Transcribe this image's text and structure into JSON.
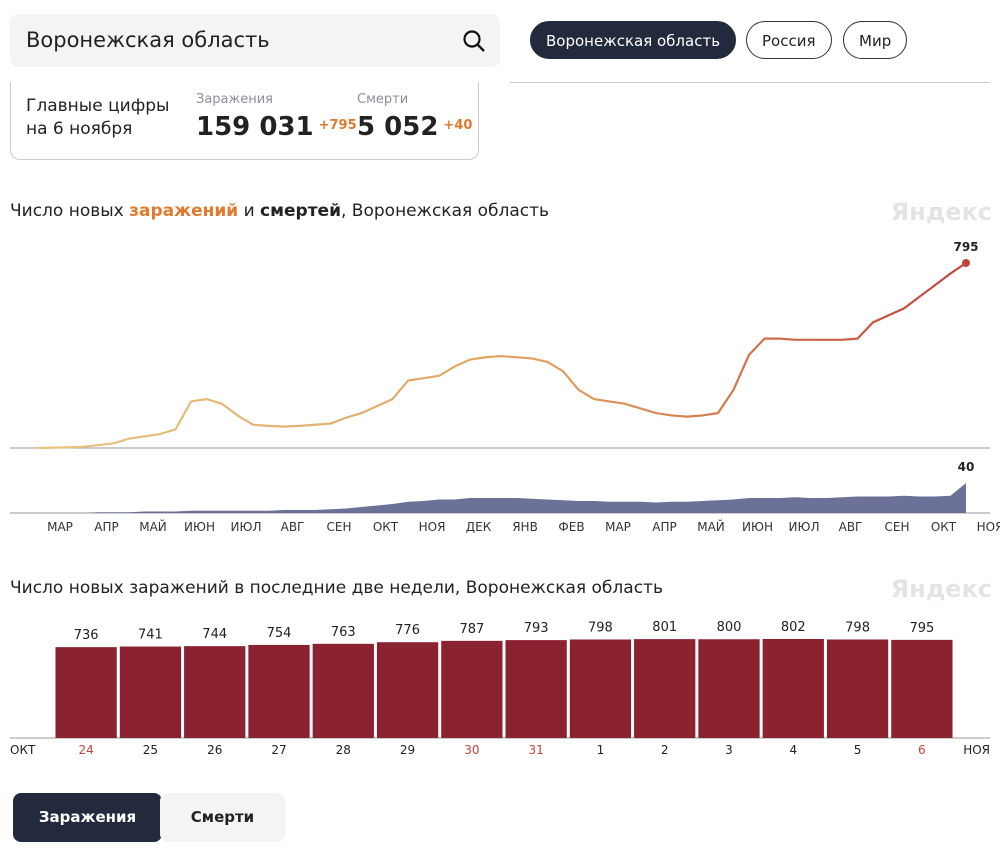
{
  "header": {
    "search": "Воронежская область",
    "regions": [
      "Воронежская область",
      "Россия",
      "Мир"
    ]
  },
  "stats": {
    "title_lines": [
      "Главные цифры",
      "на 6 ноября"
    ],
    "cases_label": "Заражения",
    "cases": "159 031",
    "cases_delta": "+795",
    "deaths_label": "Смерти",
    "deaths": "5 052",
    "deaths_delta": "+40"
  },
  "watermark": "Яндекс",
  "tabs": [
    "Заражения",
    "Смерти"
  ],
  "chart_data": [
    {
      "type": "line",
      "title_parts": [
        "Число новых ",
        "заражений",
        " и ",
        "смертей",
        ", Воронежская область"
      ],
      "categories": [
        "МАР",
        null,
        null,
        "АПР",
        null,
        null,
        "МАЙ",
        null,
        null,
        "ИЮН",
        null,
        null,
        "ИЮЛ",
        null,
        null,
        "АВГ",
        null,
        null,
        "СЕН",
        null,
        null,
        "ОКТ",
        null,
        null,
        "НОЯ",
        null,
        null,
        "ДЕК",
        null,
        null,
        "ЯНВ",
        null,
        null,
        "ФЕВ",
        null,
        null,
        "МАР",
        null,
        null,
        "АПР",
        null,
        null,
        "МАЙ",
        null,
        null,
        "ИЮН",
        null,
        null,
        "ИЮЛ",
        null,
        null,
        "АВГ",
        null,
        null,
        "СЕН",
        null,
        null,
        "ОКТ",
        null,
        null,
        "НОЯ"
      ],
      "series": [
        {
          "name": "заражений",
          "color": "#c0443a",
          "values": [
            0,
            1,
            3,
            5,
            12,
            20,
            40,
            50,
            60,
            80,
            200,
            210,
            190,
            140,
            100,
            95,
            92,
            95,
            100,
            105,
            130,
            150,
            180,
            210,
            290,
            300,
            310,
            350,
            380,
            390,
            395,
            390,
            385,
            370,
            330,
            250,
            210,
            200,
            190,
            170,
            150,
            140,
            135,
            140,
            150,
            250,
            400,
            470,
            470,
            465,
            465,
            465,
            465,
            470,
            540,
            570,
            600,
            650,
            700,
            750,
            795
          ]
        },
        {
          "name": "смертей",
          "color": "#6b7197",
          "axis": "y2",
          "values": [
            0,
            0,
            0,
            0,
            1,
            1,
            1,
            2,
            2,
            2,
            3,
            3,
            3,
            3,
            3,
            3,
            4,
            4,
            4,
            5,
            6,
            8,
            10,
            12,
            15,
            16,
            18,
            18,
            20,
            20,
            20,
            20,
            19,
            18,
            17,
            16,
            16,
            15,
            15,
            15,
            14,
            15,
            15,
            16,
            17,
            18,
            20,
            20,
            20,
            21,
            20,
            20,
            21,
            22,
            22,
            22,
            23,
            22,
            22,
            23,
            40
          ]
        }
      ]
    },
    {
      "type": "bar",
      "title": "Число новых заражений в последние две недели, Воронежская область",
      "categories": [
        "24",
        "25",
        "26",
        "27",
        "28",
        "29",
        "30",
        "31",
        "1",
        "2",
        "3",
        "4",
        "5",
        "6"
      ],
      "label_colors": [
        "#c0443a",
        "#222",
        "#222",
        "#222",
        "#222",
        "#222",
        "#c0443a",
        "#c0443a",
        "#222",
        "#222",
        "#222",
        "#222",
        "#222",
        "#c0443a"
      ],
      "edge_labels": [
        "ОКТ",
        "НОЯ"
      ],
      "color": "#8b2230",
      "values": [
        736,
        741,
        744,
        754,
        763,
        776,
        787,
        793,
        798,
        801,
        800,
        802,
        798,
        795
      ]
    }
  ]
}
